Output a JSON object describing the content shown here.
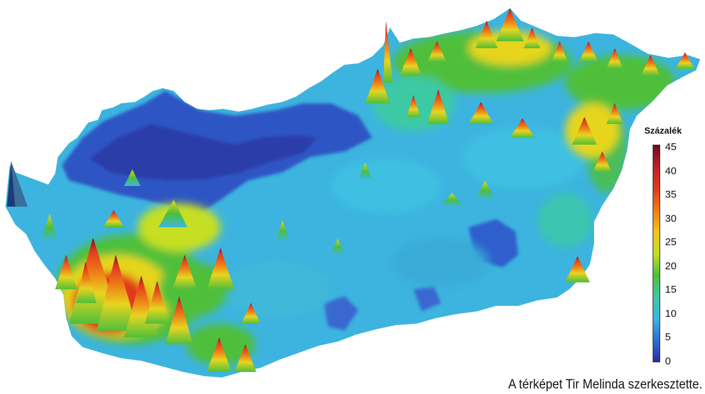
{
  "legend": {
    "title": "Százalék",
    "ticks": [
      "45",
      "40",
      "35",
      "30",
      "25",
      "20",
      "15",
      "10",
      "5",
      "0"
    ],
    "colors": [
      "#2b2fa0",
      "#2f6fd6",
      "#3bb7df",
      "#3ec9a4",
      "#4fbf3a",
      "#c6df23",
      "#f1c21a",
      "#ef7d16",
      "#e03a1f",
      "#c01f2a",
      "#6e0f1b"
    ]
  },
  "credit": "A térképet Tir Melinda szerkesztette."
}
